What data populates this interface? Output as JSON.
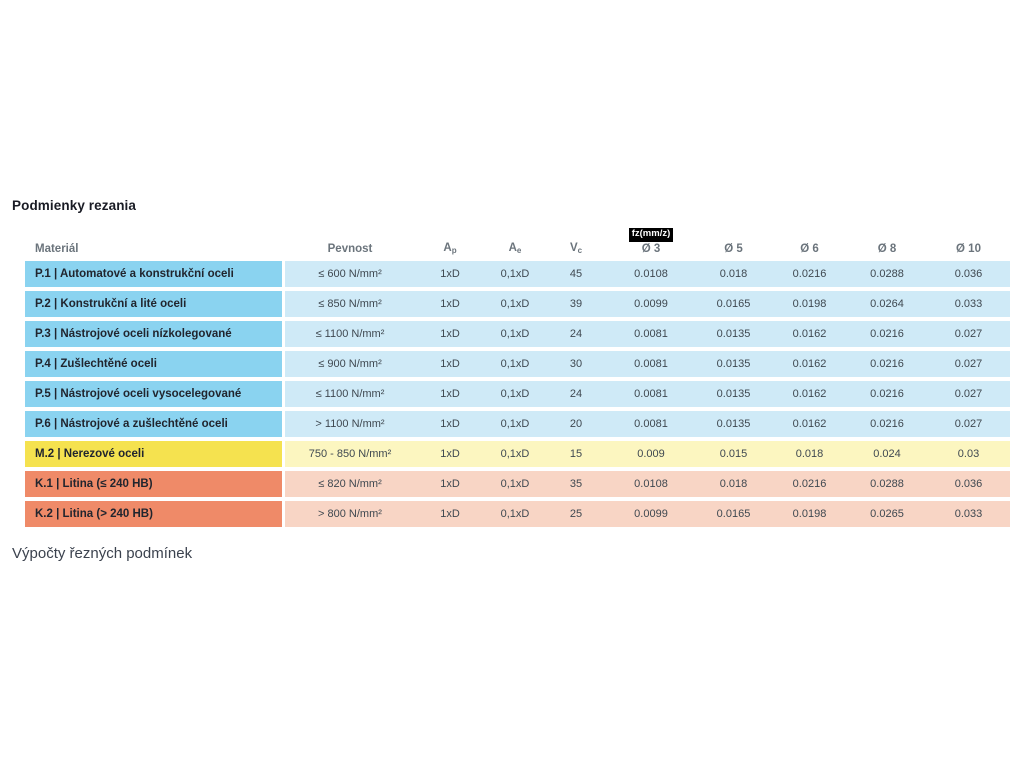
{
  "page": {
    "title": "Podmienky rezania",
    "footer_text": "Výpočty řezných podmínek"
  },
  "table": {
    "fz_badge": "fz(mm/z)",
    "headers": {
      "material": "Materiál",
      "pevnost": "Pevnost",
      "ap": {
        "base": "A",
        "sub": "p"
      },
      "ae": {
        "base": "A",
        "sub": "e"
      },
      "vc": {
        "base": "V",
        "sub": "c"
      },
      "d3": "Ø 3",
      "d5": "Ø 5",
      "d6": "Ø 6",
      "d8": "Ø 8",
      "d10": "Ø 10"
    },
    "rows": [
      {
        "material": "P.1 | Automatové a konstrukční oceli",
        "pevnost": "≤ 600 N/mm²",
        "ap": "1xD",
        "ae": "0,1xD",
        "vc": "45",
        "d3": "0.0108",
        "d5": "0.018",
        "d6": "0.0216",
        "d8": "0.0288",
        "d10": "0.036",
        "theme": "blue"
      },
      {
        "material": "P.2 | Konstrukční a lité oceli",
        "pevnost": "≤ 850 N/mm²",
        "ap": "1xD",
        "ae": "0,1xD",
        "vc": "39",
        "d3": "0.0099",
        "d5": "0.0165",
        "d6": "0.0198",
        "d8": "0.0264",
        "d10": "0.033",
        "theme": "blue"
      },
      {
        "material": "P.3 | Nástrojové oceli nízkolegované",
        "pevnost": "≤ 1100 N/mm²",
        "ap": "1xD",
        "ae": "0,1xD",
        "vc": "24",
        "d3": "0.0081",
        "d5": "0.0135",
        "d6": "0.0162",
        "d8": "0.0216",
        "d10": "0.027",
        "theme": "blue"
      },
      {
        "material": "P.4 | Zušlechtěné oceli",
        "pevnost": "≤ 900 N/mm²",
        "ap": "1xD",
        "ae": "0,1xD",
        "vc": "30",
        "d3": "0.0081",
        "d5": "0.0135",
        "d6": "0.0162",
        "d8": "0.0216",
        "d10": "0.027",
        "theme": "blue"
      },
      {
        "material": "P.5 | Nástrojové oceli vysocelegované",
        "pevnost": "≤ 1100 N/mm²",
        "ap": "1xD",
        "ae": "0,1xD",
        "vc": "24",
        "d3": "0.0081",
        "d5": "0.0135",
        "d6": "0.0162",
        "d8": "0.0216",
        "d10": "0.027",
        "theme": "blue"
      },
      {
        "material": "P.6 | Nástrojové a zušlechtěné oceli",
        "pevnost": "> 1100 N/mm²",
        "ap": "1xD",
        "ae": "0,1xD",
        "vc": "20",
        "d3": "0.0081",
        "d5": "0.0135",
        "d6": "0.0162",
        "d8": "0.0216",
        "d10": "0.027",
        "theme": "blue"
      },
      {
        "material": "M.2 | Nerezové oceli",
        "pevnost": "750 - 850 N/mm²",
        "ap": "1xD",
        "ae": "0,1xD",
        "vc": "15",
        "d3": "0.009",
        "d5": "0.015",
        "d6": "0.018",
        "d8": "0.024",
        "d10": "0.03",
        "theme": "yellow"
      },
      {
        "material": "K.1 | Litina (≤ 240 HB)",
        "pevnost": "≤ 820 N/mm²",
        "ap": "1xD",
        "ae": "0,1xD",
        "vc": "35",
        "d3": "0.0108",
        "d5": "0.018",
        "d6": "0.0216",
        "d8": "0.0288",
        "d10": "0.036",
        "theme": "salmon"
      },
      {
        "material": "K.2 | Litina (> 240 HB)",
        "pevnost": "> 800 N/mm²",
        "ap": "1xD",
        "ae": "0,1xD",
        "vc": "25",
        "d3": "0.0099",
        "d5": "0.0165",
        "d6": "0.0198",
        "d8": "0.0265",
        "d10": "0.033",
        "theme": "salmon"
      }
    ]
  },
  "colors": {
    "blue_label": "#8ad3f0",
    "blue_row": "#cfeaf7",
    "yellow_label": "#f5e24f",
    "yellow_row": "#fcf6c0",
    "salmon_label": "#ef8a68",
    "salmon_row": "#f8d5c5",
    "badge_bg": "#000000",
    "badge_text": "#ffffff",
    "header_text": "#6b747c",
    "title_text": "#191b24"
  }
}
